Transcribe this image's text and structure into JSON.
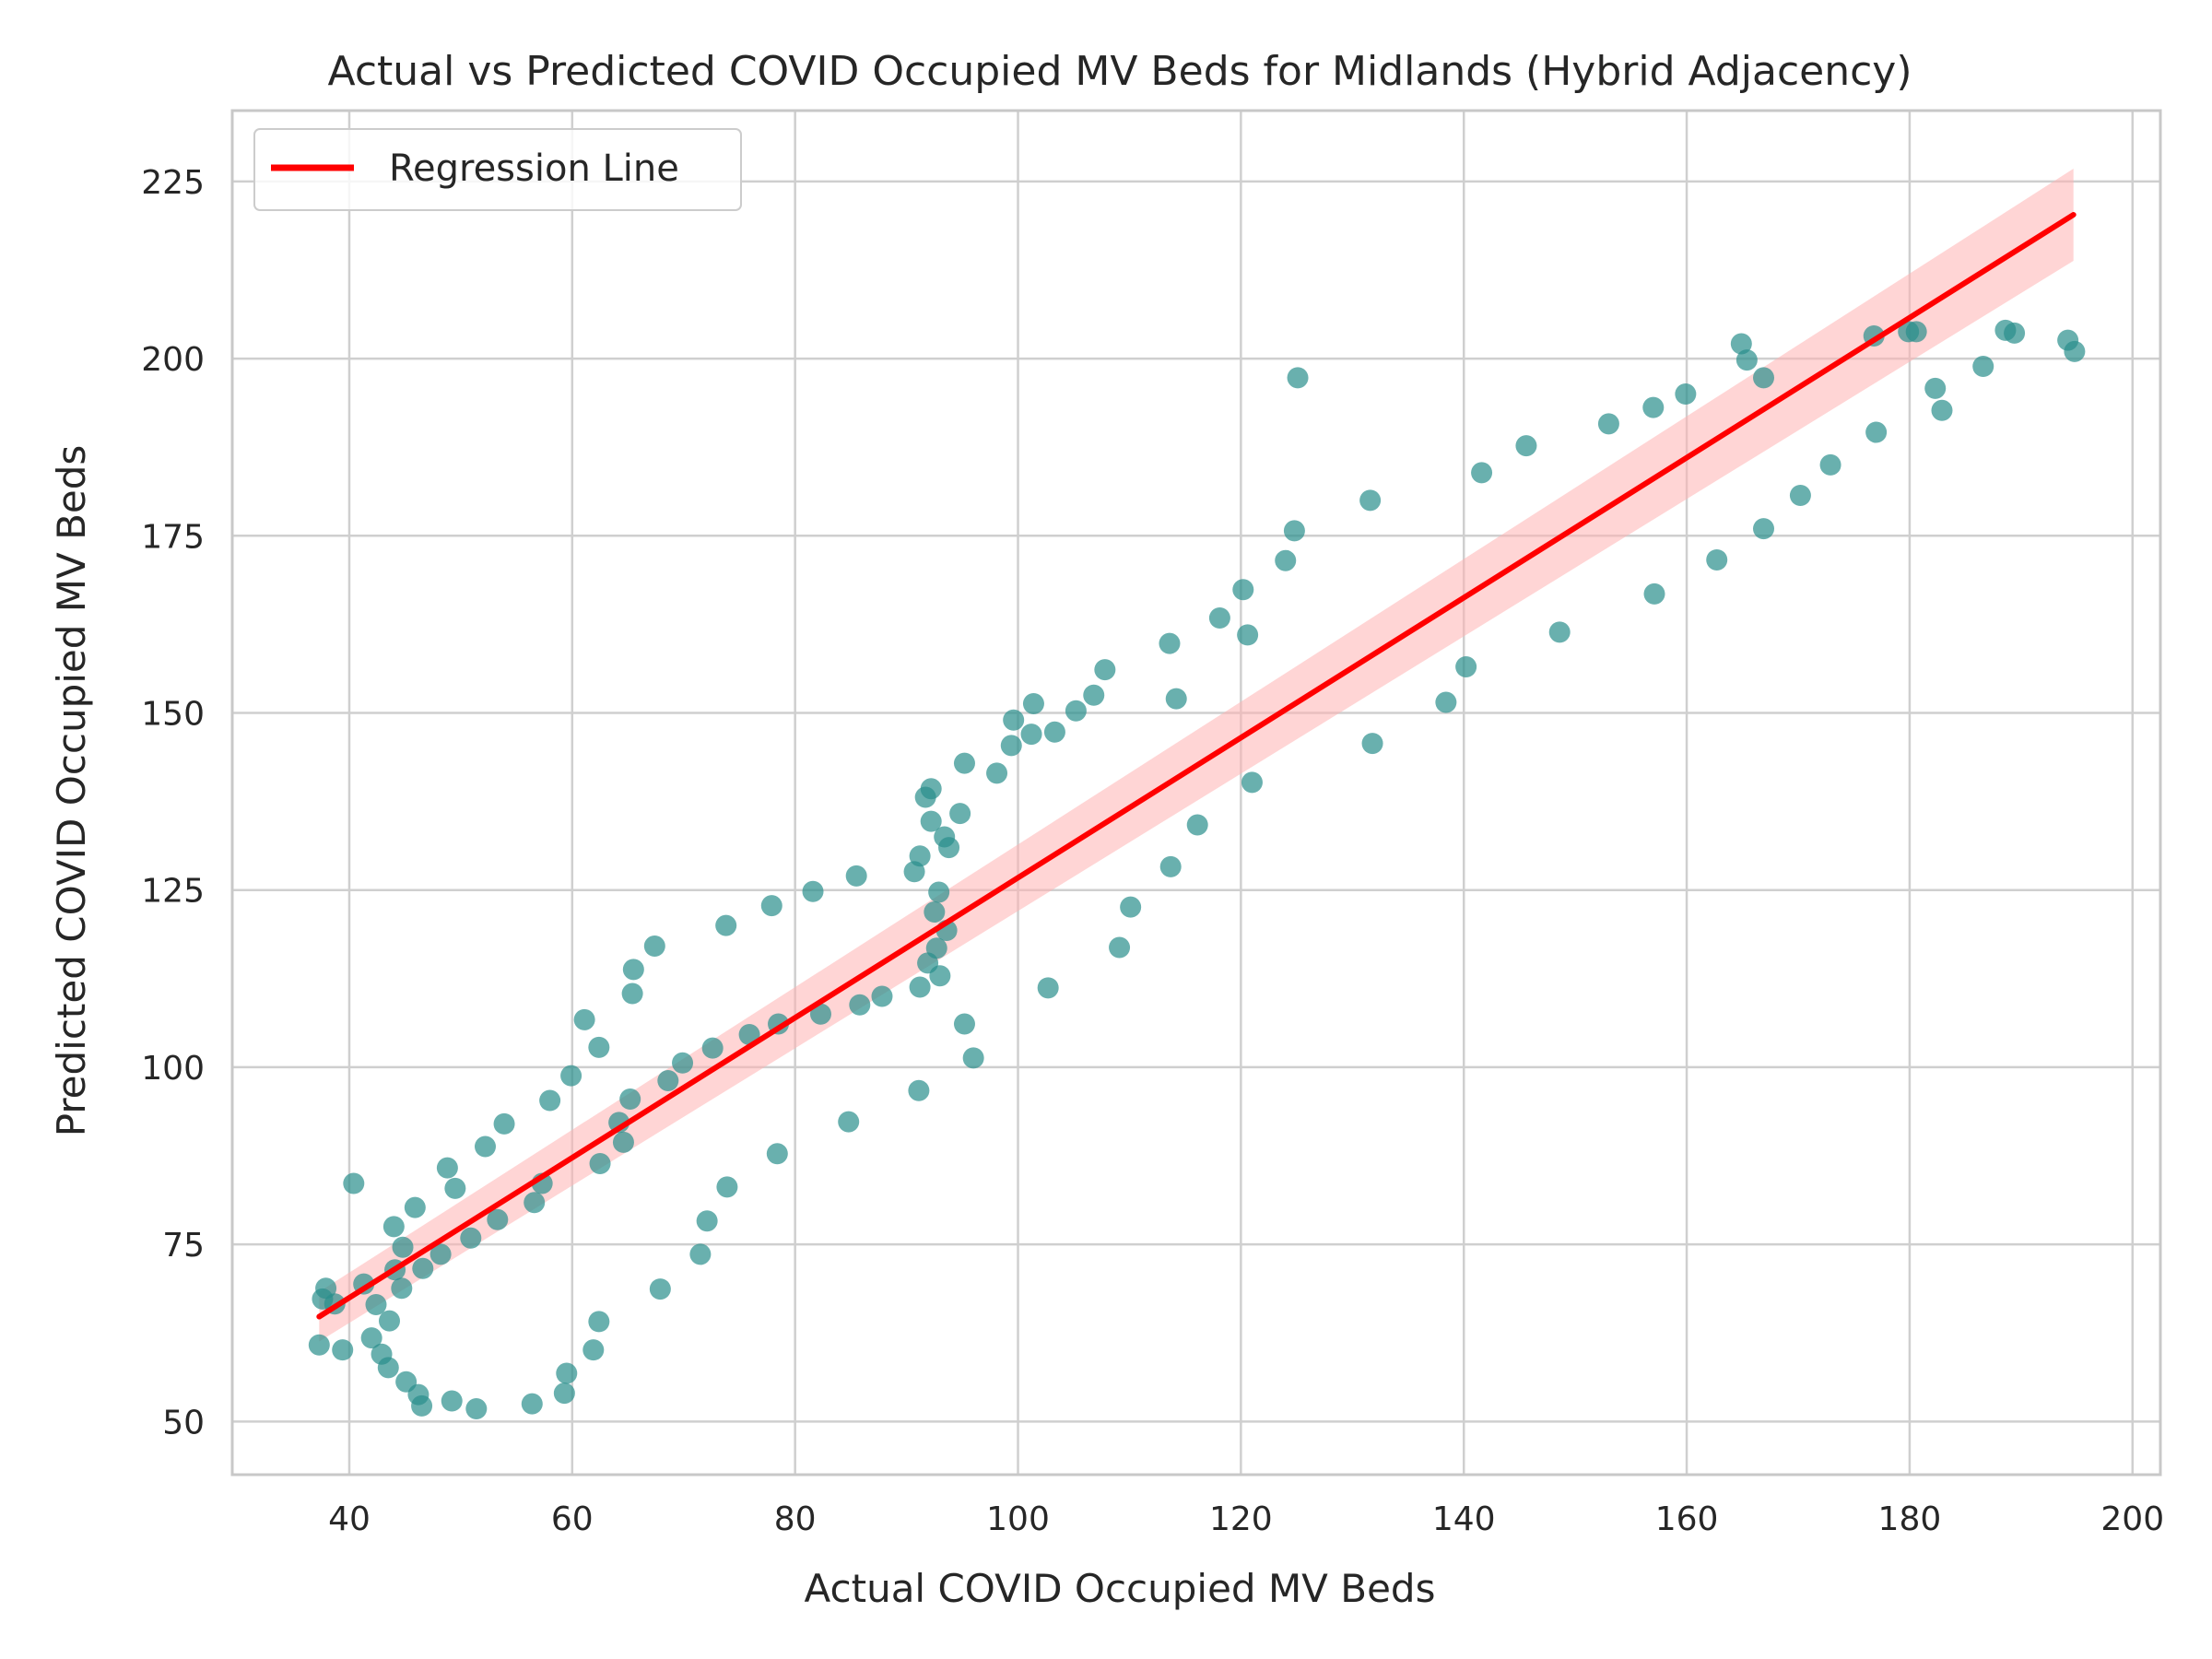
{
  "chart_data": {
    "type": "scatter",
    "title": "Actual vs Predicted COVID Occupied MV Beds for Midlands (Hybrid Adjacency)",
    "xlabel": "Actual COVID Occupied MV Beds",
    "ylabel": "Predicted COVID Occupied MV Beds",
    "xlim": [
      29.5,
      202.5
    ],
    "ylim": [
      42.5,
      235
    ],
    "xticks": [
      40,
      60,
      80,
      100,
      120,
      140,
      160,
      180,
      200
    ],
    "yticks": [
      50,
      75,
      100,
      125,
      150,
      175,
      200,
      225
    ],
    "grid": true,
    "legend": {
      "position": "top-left",
      "entries": [
        "Regression Line"
      ]
    },
    "colors": {
      "points": "#2a8f8c",
      "regression": "#ff0000",
      "band": "#ffb3b3",
      "grid": "#cfcfcf",
      "frame": "#c8c8c8"
    },
    "regression": {
      "x": [
        37.3,
        194.7
      ],
      "y": [
        64.8,
        220.3
      ],
      "ci_halfwidth": [
        3.5,
        6.5
      ]
    },
    "points": [
      [
        37.3,
        60.8
      ],
      [
        37.6,
        67.3
      ],
      [
        37.9,
        68.8
      ],
      [
        38.7,
        66.6
      ],
      [
        39.4,
        60.1
      ],
      [
        40.4,
        83.6
      ],
      [
        41.3,
        69.4
      ],
      [
        42.0,
        61.8
      ],
      [
        42.4,
        66.5
      ],
      [
        42.9,
        59.5
      ],
      [
        43.5,
        57.6
      ],
      [
        43.6,
        64.2
      ],
      [
        44.0,
        77.5
      ],
      [
        44.1,
        71.4
      ],
      [
        44.7,
        68.8
      ],
      [
        44.8,
        74.6
      ],
      [
        45.1,
        55.6
      ],
      [
        45.9,
        80.2
      ],
      [
        46.2,
        53.8
      ],
      [
        46.5,
        52.2
      ],
      [
        46.6,
        71.6
      ],
      [
        48.2,
        73.6
      ],
      [
        48.8,
        85.8
      ],
      [
        49.2,
        52.9
      ],
      [
        49.5,
        82.9
      ],
      [
        50.9,
        75.9
      ],
      [
        51.4,
        51.8
      ],
      [
        52.2,
        88.8
      ],
      [
        53.3,
        78.5
      ],
      [
        53.9,
        92.0
      ],
      [
        56.4,
        52.5
      ],
      [
        56.6,
        80.9
      ],
      [
        57.3,
        83.6
      ],
      [
        58.0,
        95.3
      ],
      [
        59.3,
        54.0
      ],
      [
        59.5,
        56.8
      ],
      [
        59.9,
        98.8
      ],
      [
        61.1,
        106.7
      ],
      [
        61.9,
        60.1
      ],
      [
        62.4,
        102.8
      ],
      [
        62.4,
        64.1
      ],
      [
        62.5,
        86.4
      ],
      [
        64.2,
        92.2
      ],
      [
        64.6,
        89.4
      ],
      [
        65.2,
        95.5
      ],
      [
        65.4,
        110.4
      ],
      [
        65.5,
        113.8
      ],
      [
        67.4,
        117.1
      ],
      [
        67.9,
        68.7
      ],
      [
        68.6,
        98.1
      ],
      [
        69.9,
        100.6
      ],
      [
        71.5,
        73.6
      ],
      [
        72.1,
        78.3
      ],
      [
        72.6,
        102.7
      ],
      [
        73.8,
        120.0
      ],
      [
        73.9,
        83.1
      ],
      [
        75.9,
        104.6
      ],
      [
        77.9,
        122.8
      ],
      [
        78.4,
        87.8
      ],
      [
        78.5,
        106.1
      ],
      [
        81.6,
        124.8
      ],
      [
        82.3,
        107.5
      ],
      [
        84.8,
        92.3
      ],
      [
        85.5,
        127.0
      ],
      [
        85.8,
        108.8
      ],
      [
        87.8,
        110.0
      ],
      [
        90.7,
        127.6
      ],
      [
        91.1,
        96.7
      ],
      [
        91.2,
        129.8
      ],
      [
        91.2,
        111.3
      ],
      [
        91.7,
        138.1
      ],
      [
        91.9,
        114.7
      ],
      [
        92.2,
        139.3
      ],
      [
        92.2,
        134.7
      ],
      [
        92.5,
        121.9
      ],
      [
        92.7,
        116.8
      ],
      [
        92.9,
        124.7
      ],
      [
        93.0,
        112.9
      ],
      [
        93.4,
        132.5
      ],
      [
        93.6,
        119.3
      ],
      [
        93.8,
        131.0
      ],
      [
        94.8,
        135.8
      ],
      [
        95.2,
        106.1
      ],
      [
        95.2,
        142.9
      ],
      [
        96.0,
        101.3
      ],
      [
        98.1,
        141.5
      ],
      [
        99.4,
        145.4
      ],
      [
        99.6,
        149.0
      ],
      [
        101.2,
        147.0
      ],
      [
        101.4,
        151.3
      ],
      [
        102.7,
        111.2
      ],
      [
        103.3,
        147.3
      ],
      [
        105.2,
        150.3
      ],
      [
        106.8,
        152.5
      ],
      [
        107.8,
        156.1
      ],
      [
        109.1,
        116.9
      ],
      [
        110.1,
        122.6
      ],
      [
        113.6,
        159.8
      ],
      [
        113.7,
        128.3
      ],
      [
        114.2,
        152.0
      ],
      [
        116.1,
        134.2
      ],
      [
        118.1,
        163.4
      ],
      [
        120.2,
        167.4
      ],
      [
        120.6,
        161.0
      ],
      [
        121.0,
        140.2
      ],
      [
        124.0,
        171.5
      ],
      [
        124.8,
        175.7
      ],
      [
        125.1,
        197.3
      ],
      [
        131.6,
        180.0
      ],
      [
        131.8,
        145.7
      ],
      [
        138.4,
        151.5
      ],
      [
        140.2,
        156.5
      ],
      [
        141.6,
        183.9
      ],
      [
        145.6,
        187.7
      ],
      [
        148.6,
        161.4
      ],
      [
        153.0,
        190.8
      ],
      [
        157.0,
        193.1
      ],
      [
        157.1,
        166.8
      ],
      [
        159.9,
        195.0
      ],
      [
        162.7,
        171.6
      ],
      [
        164.9,
        202.1
      ],
      [
        165.4,
        199.8
      ],
      [
        166.9,
        197.3
      ],
      [
        166.9,
        176.0
      ],
      [
        170.2,
        180.7
      ],
      [
        172.9,
        185.0
      ],
      [
        176.8,
        203.2
      ],
      [
        177.0,
        189.6
      ],
      [
        179.9,
        203.8
      ],
      [
        180.6,
        203.8
      ],
      [
        182.3,
        195.8
      ],
      [
        182.9,
        192.7
      ],
      [
        186.6,
        198.9
      ],
      [
        188.6,
        204.0
      ],
      [
        189.4,
        203.6
      ],
      [
        194.2,
        202.6
      ],
      [
        194.8,
        201.0
      ]
    ]
  }
}
